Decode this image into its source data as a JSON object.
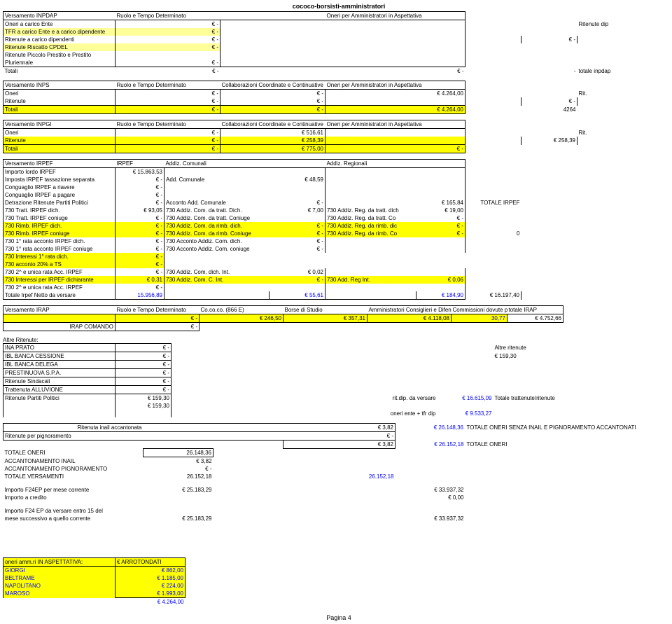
{
  "title": "cococo-borsisti-amministratori",
  "footer": "Pagina 4",
  "inpdap": {
    "h1": "Versamento INPDAP",
    "h2": "Ruolo e Tempo Determinato",
    "h3": "Oneri per Amministratori in Aspettativa",
    "rows": [
      {
        "l": "Oneri a carico Ente",
        "v1": "€ -",
        "side": "Ritenute dip"
      },
      {
        "l": "TFR a carico Ente e a carico dipendente",
        "v1": "€ -"
      },
      {
        "l": "Ritenute a carico dipendenti",
        "v1": "€ -",
        "v3": "€ -"
      },
      {
        "l": "Ritenute Riscatto CPDEL",
        "v1": "€ -"
      },
      {
        "l": "Ritenute Piccolo Prestito e Prestito"
      },
      {
        "l": "Pluriennale",
        "v1": "€ -"
      },
      {
        "l": "Totali",
        "v1": "€ -",
        "v2": "€ -",
        "v3": "-",
        "side": "totale inpdap"
      }
    ]
  },
  "inps": {
    "h1": "Versamento INPS",
    "h2": "Ruolo e Tempo Determinato",
    "h3": "Collaborazioni Coordinate e Continuative",
    "h4": "Oneri per Amministratori in Aspettativa",
    "r1": {
      "l": "Oneri",
      "a": "€ -",
      "b": "€ -",
      "c": "€ 4.264,00",
      "side": "Rit."
    },
    "r2": {
      "l": "Ritenute",
      "a": "€ -",
      "b": "€ -",
      "side": "€ -"
    },
    "r3": {
      "l": "Totali",
      "a": "€ -",
      "b": "€ -",
      "c": "€ 4.264,00",
      "side": "4264"
    }
  },
  "inpgi": {
    "h1": "Versamento INPGI",
    "h2": "Ruolo e Tempo Determinato",
    "h3": "Collaborazioni Coordinate e Continuative",
    "h4": "Oneri per Amministratori in Aspettativa",
    "r1": {
      "l": "Oneri",
      "a": "€ -",
      "b": "€ 516,61",
      "side": "Rit."
    },
    "r2": {
      "l": "Ritenute",
      "a": "€ -",
      "b": "€ 258,39",
      "side": "€ 258,39"
    },
    "r3": {
      "l": "Totali",
      "a": "€ -",
      "b": "€ 775,00",
      "c": "€ -"
    }
  },
  "irpef": {
    "h1": "Versamento IRPEF",
    "h2": "IRPEF",
    "h3": "Addiz. Comunali",
    "h4": "Addiz. Regionali",
    "rows": [
      {
        "l": "Importo lordo IRPEF",
        "a": "€ 15.863,53"
      },
      {
        "l": "Imposta IRPEF tassazione separata",
        "a": "€ -",
        "t": "Add. Comunale",
        "b": "€ 48,59"
      },
      {
        "l": "Conguaglio IRPEF a riavere",
        "a": "€ -"
      },
      {
        "l": "Conguaglio IRPEF a pagare",
        "a": "€ -"
      },
      {
        "l": "Detrazione Ritenute Partiti Politici",
        "a": "€ -",
        "t": "Acconto Add. Comunale",
        "b": "€ -",
        "d": "€ 165,84",
        "side": "TOTALE IRPEF"
      },
      {
        "l": "730 Tratt. IRPEF dich.",
        "a": "€ 93,05",
        "t": "730 Addiz. Com. da tratt. Dich.",
        "b": "€ 7,00",
        "u": "730 Addiz. Reg. da tratt. dich",
        "d": "€ 19,00"
      },
      {
        "l": "730 Tratt. IRPEF coniuge",
        "a": "€ -",
        "t": "730 Addiz. Com. da tratt. Coniuge",
        "u": "730 Addiz. Reg. da tratt. Co",
        "d": "€ -"
      },
      {
        "l": "730 Rimb. IRPEF dich.",
        "a": "€ -",
        "t": "730 Addiz. Com. da rimb. dich.",
        "b": "€ -",
        "u": "730 Addiz. Reg. da rimb. dic",
        "d": "€ -",
        "hl": true
      },
      {
        "l": "730 Rimb. IRPEF coniuge",
        "a": "€ -",
        "t": "730 Addiz. Com. da rimb. Coniuge",
        "b": "€ -",
        "u": "730 Addiz. Reg. da rimb. Co",
        "d": "€ -",
        "side": "0",
        "hl": true
      },
      {
        "l": "730 1° rata acconto IRPEF dich.",
        "a": "€ -",
        "t": "730 Acconto Addiz. Com. dich.",
        "b": "€ -"
      },
      {
        "l": "730 1° rata acconto IRPEF coniuge",
        "a": "€ -",
        "t": "730 Acconto Addiz. Com. coniuge",
        "b": "€ -"
      },
      {
        "l": "730 Interessi 1° rata dich.",
        "a": "€ -",
        "hl": true,
        "short": true
      },
      {
        "l": "730 acconto 20% a TS",
        "a": "€ -",
        "hl": true,
        "short": true
      },
      {
        "l": "730 2^ e unica rata Acc. IRPEF",
        "a": "€ -",
        "t": "730 Addiz. Com. dich. Int.",
        "b": "€ 0,02"
      },
      {
        "l": "730 Interessi per IRPEF dichiarante",
        "a": "€ 0,31",
        "t": "730 Addiz. Com. C. Int.",
        "b": "€ -",
        "u": "730 Add. Reg Int.",
        "d": "€ 0,06",
        "hl": true
      },
      {
        "l": "730 2^ e unica rata Acc. IRPEF",
        "a": "€ -"
      },
      {
        "l": "Totale Irpef Netto da versare",
        "a": "15.956,89",
        "b": "€ 55,61",
        "d": "€ 184,90",
        "side": "€ 16.197,40",
        "tot": true
      }
    ]
  },
  "irap": {
    "h1": "Versamento IRAP",
    "h2": "Ruolo e Tempo Determinato",
    "h3": "Co.co.co. (866 E)",
    "h4": "Borse di Studio",
    "h5": "Amministratori Consiglieri e Difensore Civico",
    "h6": "Commissioni dovute per legge",
    "h7": "totale IRAP",
    "r1": {
      "a": "€ -",
      "b": "€ 246,50",
      "c": "€ 357,31",
      "d": "€ 4.118,08",
      "e": "30,77",
      "f": "€ 4.752,66"
    },
    "r2": {
      "l": "IRAP COMANDO",
      "a": "€ -"
    }
  },
  "altre": {
    "title": "Altre Ritenute:",
    "rows": [
      {
        "l": "INA PRATO",
        "v": "€ -",
        "side": "Altre ritenute"
      },
      {
        "l": "IBL BANCA CESSIONE",
        "v": "€ -",
        "side": "€ 159,30"
      },
      {
        "l": "IBL BANCA DELEGA",
        "v": "€ -"
      },
      {
        "l": "PRESTINUOVA S.P.A.",
        "v": "€ -"
      },
      {
        "l": "Ritenute Sindacali",
        "v": "€ -"
      },
      {
        "l": "Trattenuta ALLUVIONE",
        "v": "€ -"
      },
      {
        "l": "Ritenute Partiti Politici",
        "v": "€ 159,30",
        "m": "rit.dip. da versare",
        "s": "€ 16.615,09",
        "side": "Totale trattenute/ritenute"
      },
      {
        "l": "",
        "v": "€ 159,30"
      },
      {
        "l": "",
        "m": "oneri ente + tfr dip",
        "s": "€ 9.533,27"
      }
    ]
  },
  "totals": {
    "r1": {
      "l": "Ritenuta inail accantonata",
      "v": "€ 3,82",
      "s": "€ 26.148,36",
      "side": "TOTALE ONERI SENZA INAIL E PIGNORAMENTO ACCANTONATI"
    },
    "r2": {
      "l": "Ritenute per pignoramento",
      "v": "€ -"
    },
    "r3": {
      "v": "€ 3,82",
      "s": "€ 26.152,18",
      "side": "TOTALE ONERI"
    },
    "r4": {
      "l": "TOTALE ONERI",
      "v": "26.148,36"
    },
    "r5": {
      "l": "ACCANTONAMENTO INAIL",
      "v": "€ 3,82"
    },
    "r6": {
      "l": "ACCANTONAMENTO PIGNORAMENTO",
      "v": "€ -"
    },
    "r7": {
      "l": "TOTALE VERSAMENTI",
      "v": "26.152,18",
      "b": "26.152,18"
    },
    "r8": {
      "l": "Importo F24EP per mese corrente",
      "v": "€ 25.183,29",
      "s": "€ 33.937,32"
    },
    "r9": {
      "l": "Importo a credito",
      "s": "€ 0,00"
    },
    "r10": {
      "l": "Importo F24 EP da versare entro 15 del"
    },
    "r11": {
      "l": "mese successivo a quello corrente",
      "v": "€ 25.183,29",
      "s": "€ 33.937,32"
    }
  },
  "asp": {
    "h1": "oneri amm.ri IN ASPETTATIVA:",
    "h2": "€ ARROTONDATI",
    "rows": [
      {
        "l": "GIORGI",
        "v": "€ 862,00"
      },
      {
        "l": "BELTRAME",
        "v": "€ 1.185,00"
      },
      {
        "l": "NAPOLITANO",
        "v": "€ 224,00"
      },
      {
        "l": "MAROSO",
        "v": "€ 1.993,00"
      }
    ],
    "tot": "€ 4.264,00"
  }
}
